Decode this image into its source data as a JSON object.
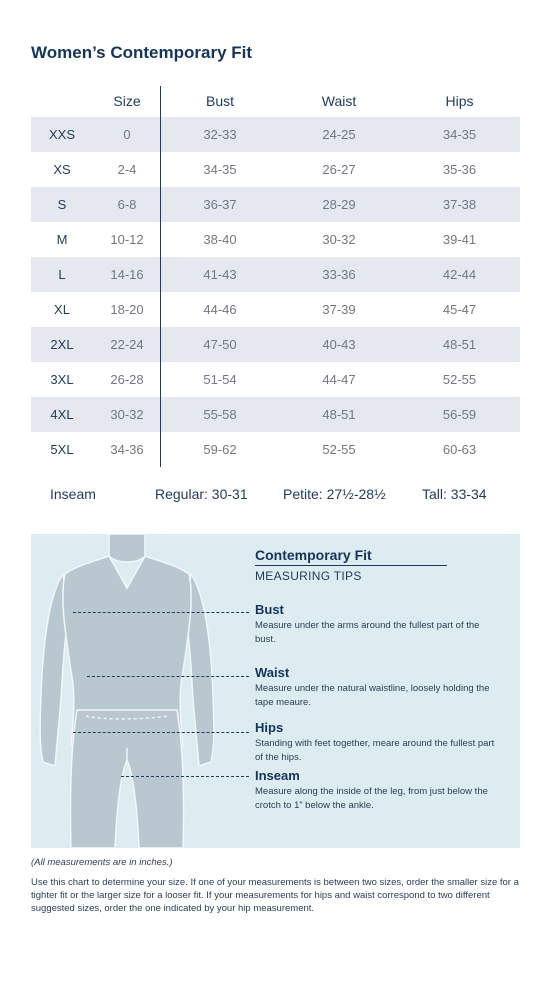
{
  "title": "Women’s Contemporary Fit",
  "table": {
    "headers": [
      "",
      "Size",
      "Bust",
      "Waist",
      "Hips"
    ],
    "rows": [
      [
        "XXS",
        "0",
        "32-33",
        "24-25",
        "34-35"
      ],
      [
        "XS",
        "2-4",
        "34-35",
        "26-27",
        "35-36"
      ],
      [
        "S",
        "6-8",
        "36-37",
        "28-29",
        "37-38"
      ],
      [
        "M",
        "10-12",
        "38-40",
        "30-32",
        "39-41"
      ],
      [
        "L",
        "14-16",
        "41-43",
        "33-36",
        "42-44"
      ],
      [
        "XL",
        "18-20",
        "44-46",
        "37-39",
        "45-47"
      ],
      [
        "2XL",
        "22-24",
        "47-50",
        "40-43",
        "48-51"
      ],
      [
        "3XL",
        "26-28",
        "51-54",
        "44-47",
        "52-55"
      ],
      [
        "4XL",
        "30-32",
        "55-58",
        "48-51",
        "56-59"
      ],
      [
        "5XL",
        "34-36",
        "59-62",
        "52-55",
        "60-63"
      ]
    ]
  },
  "inseam": {
    "label": "Inseam",
    "regular": "Regular: 30-31",
    "petite": "Petite: 27½-28½",
    "tall": "Tall: 33-34"
  },
  "measuring": {
    "title": "Contemporary Fit",
    "subtitle": "MEASURING TIPS",
    "tips": [
      {
        "name": "Bust",
        "desc": "Measure under the arms around the fullest part of the bust."
      },
      {
        "name": "Waist",
        "desc": "Measure under the natural waistline, loosely holding the tape meaure."
      },
      {
        "name": "Hips",
        "desc": "Standing with feet together, meare around the fullest part of the hips."
      },
      {
        "name": "Inseam",
        "desc": "Measure along the inside of the leg, from just below the crotch to 1” below the ankle."
      }
    ]
  },
  "note": "(All measurements are in inches.)",
  "footer": "Use this chart to determine your size. If one of your measurements is between two sizes, order the smaller size for a tighter fit or the larger size for a looser fit. If your measurements for hips and waist correspond to two different suggested sizes, order the one indicated by your hip measurement.",
  "colors": {
    "navy": "#15345a",
    "row_shade": "#e5e8ef",
    "panel_bg": "#dcecf0",
    "figure": "#b9c8d0"
  }
}
